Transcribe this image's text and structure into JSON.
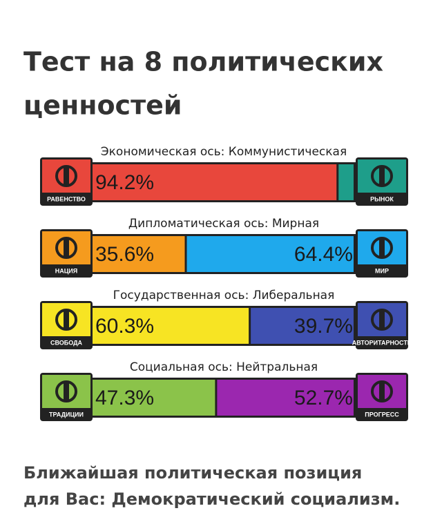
{
  "header": {
    "title_lines": [
      "Тест на 8 политических",
      "ценностей"
    ]
  },
  "axes": [
    {
      "label": "Экономическая ось: Коммунистическая",
      "left": {
        "name": "РАВЕНСТВО",
        "color": "#e8473c"
      },
      "right": {
        "name": "РЫНОК",
        "color": "#1e9e8a"
      },
      "values": [
        94.2,
        5.8
      ],
      "value_labels": [
        "94.2%",
        null
      ]
    },
    {
      "label": "Дипломатическая ось: Мирная",
      "left": {
        "name": "НАЦИЯ",
        "color": "#f59b1e"
      },
      "right": {
        "name": "МИР",
        "color": "#1fa9ec"
      },
      "values": [
        35.6,
        64.4
      ],
      "value_labels": [
        "35.6%",
        "64.4%"
      ]
    },
    {
      "label": "Государственная ось: Либеральная",
      "left": {
        "name": "СВОБОДА",
        "color": "#f7e423"
      },
      "right": {
        "name": "АВТОРИТАРНОСТЬ",
        "color": "#3f50b1"
      },
      "values": [
        60.3,
        39.7
      ],
      "value_labels": [
        "60.3%",
        "39.7%"
      ]
    },
    {
      "label": "Социальная ось: Нейтральная",
      "left": {
        "name": "ТРАДИЦИИ",
        "color": "#8bc34a"
      },
      "right": {
        "name": "ПРОГРЕСС",
        "color": "#9b27af"
      },
      "values": [
        47.3,
        52.7
      ],
      "value_labels": [
        "47.3%",
        "52.7%"
      ]
    }
  ],
  "footer": {
    "lines": [
      "Ближайшая политическая позиция",
      "для Вас: Демократический социализм."
    ]
  }
}
